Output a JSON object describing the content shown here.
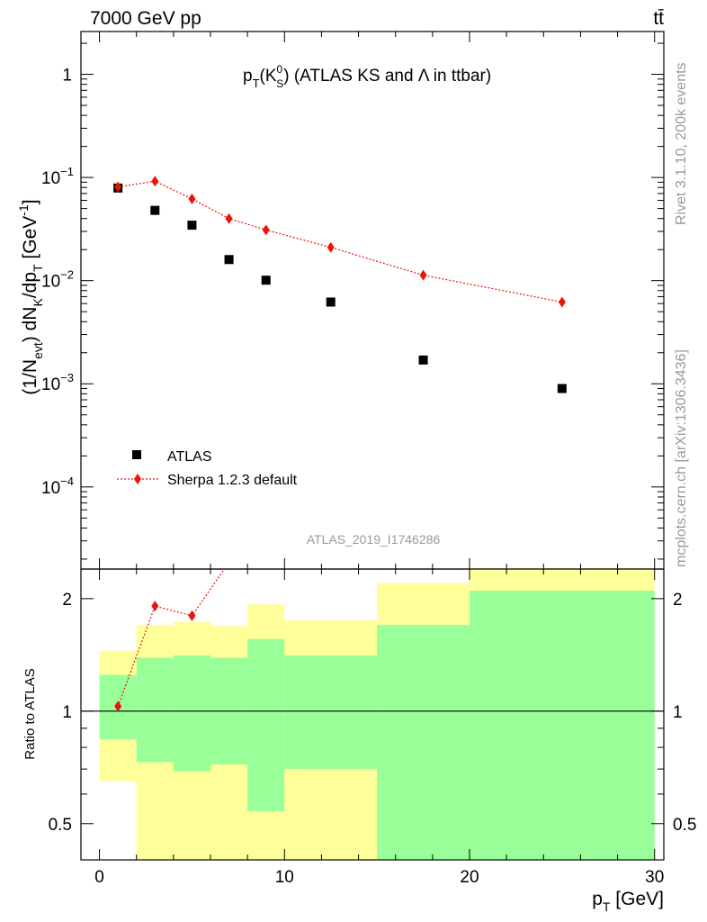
{
  "header": {
    "left": "7000 GeV pp",
    "right": "tt̄"
  },
  "side": {
    "rivet": "Rivet 3.1.10,  200k events",
    "mcplots": "mcplots.cern.ch [arXiv:1306.3436]"
  },
  "chart_data": [
    {
      "type": "scatter",
      "title": "pT(K0S) (ATLAS KS and Λ in ttbar)",
      "title_parts": {
        "p": "p",
        "T": "T",
        "K": "(K",
        "zero": "0",
        "S": "S",
        "rest": ") (ATLAS KS and Λ in ttbar)"
      },
      "watermark": "ATLAS_2019_I1746286",
      "ylabel": "(1/Nevt) dNK/dpT [GeV-1]",
      "ylabel_parts": {
        "a": "(1/N",
        "evt": "evt",
        "b": ") dN",
        "K": "K",
        "c": "/dp",
        "T": "T",
        "d": " [GeV",
        "m1": "-1",
        "e": "]"
      },
      "yscale": "log",
      "ylim": [
        1.6e-05,
        2.6
      ],
      "xlim": [
        -1,
        30.5
      ],
      "yticks": [
        {
          "v": 1,
          "m": "1",
          "e": ""
        },
        {
          "v": 0.1,
          "m": "10",
          "e": "−1"
        },
        {
          "v": 0.01,
          "m": "10",
          "e": "−2"
        },
        {
          "v": 0.001,
          "m": "10",
          "e": "−3"
        },
        {
          "v": 0.0001,
          "m": "10",
          "e": "−4"
        }
      ],
      "series": [
        {
          "name": "ATLAS",
          "marker": "square",
          "color": "#000000",
          "x": [
            1,
            3,
            5,
            7,
            9,
            12.5,
            17.5,
            25
          ],
          "y": [
            0.079,
            0.048,
            0.0345,
            0.016,
            0.0101,
            0.0062,
            0.0017,
            0.0009
          ]
        },
        {
          "name": "Sherpa 1.2.3 default",
          "marker": "diamond",
          "line": "dotted",
          "color": "#e8140c",
          "x": [
            1,
            3,
            5,
            7,
            9,
            12.5,
            17.5,
            25
          ],
          "y": [
            0.081,
            0.092,
            0.062,
            0.04,
            0.031,
            0.021,
            0.0113,
            0.0062
          ]
        }
      ],
      "legend": "bottom-left"
    },
    {
      "type": "line",
      "ylabel": "Ratio to ATLAS",
      "xlabel": "pT [GeV]",
      "xlabel_parts": {
        "p": "p",
        "T": "T",
        "unit": " [GeV]"
      },
      "yscale": "log",
      "ylim": [
        0.4,
        2.4
      ],
      "xlim": [
        -1,
        30.5
      ],
      "xticks": [
        "0",
        "10",
        "20",
        "30"
      ],
      "yticks": [
        "0.5",
        "1",
        "2"
      ],
      "reference_line": 1,
      "bins": [
        {
          "x0": 0,
          "x1": 2,
          "yellow": [
            0.65,
            1.45
          ],
          "green": [
            0.84,
            1.25
          ]
        },
        {
          "x0": 2,
          "x1": 4,
          "yellow": [
            0.4,
            1.7
          ],
          "green": [
            0.73,
            1.39
          ]
        },
        {
          "x0": 4,
          "x1": 6,
          "yellow": [
            0.4,
            1.73
          ],
          "green": [
            0.69,
            1.41
          ]
        },
        {
          "x0": 6,
          "x1": 8,
          "yellow": [
            0.4,
            1.69
          ],
          "green": [
            0.72,
            1.39
          ]
        },
        {
          "x0": 8,
          "x1": 10,
          "yellow": [
            0.4,
            1.93
          ],
          "green": [
            0.54,
            1.56
          ]
        },
        {
          "x0": 10,
          "x1": 15,
          "yellow": [
            0.4,
            1.75
          ],
          "green": [
            0.7,
            1.41
          ]
        },
        {
          "x0": 15,
          "x1": 20,
          "yellow": [
            0.4,
            2.2
          ],
          "green": [
            0.4,
            1.7
          ]
        },
        {
          "x0": 20,
          "x1": 30,
          "yellow": [
            0.4,
            2.4
          ],
          "green": [
            0.4,
            2.1
          ]
        }
      ],
      "series": [
        {
          "name": "Sherpa 1.2.3 default",
          "marker": "diamond",
          "color": "#e8140c",
          "x": [
            1,
            3,
            5,
            7
          ],
          "y": [
            1.03,
            1.91,
            1.8,
            2.5
          ]
        }
      ],
      "colors": {
        "yellow": "#ffff99",
        "green": "#99ff99"
      }
    }
  ]
}
